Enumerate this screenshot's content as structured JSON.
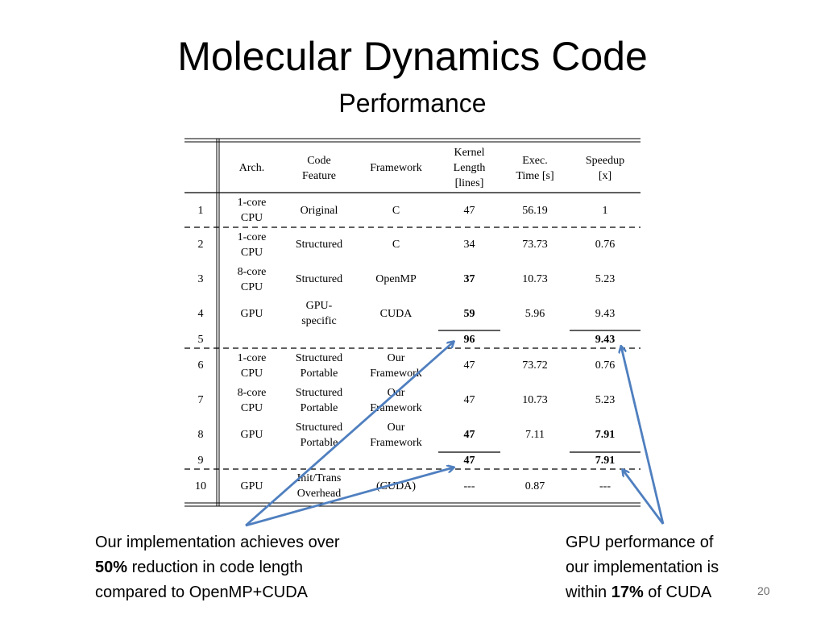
{
  "slide": {
    "title": "Molecular Dynamics Code",
    "subtitle": "Performance",
    "page_number": "20"
  },
  "table": {
    "headers": [
      "",
      "Arch.",
      "Code\nFeature",
      "Framework",
      "Kernel\nLength\n[lines]",
      "Exec.\nTime [s]",
      "Speedup\n[x]"
    ],
    "rows": [
      [
        "1",
        "1-core\nCPU",
        "Original",
        "C",
        "47",
        "56.19",
        "1"
      ],
      [
        "2",
        "1-core\nCPU",
        "Structured",
        "C",
        "34",
        "73.73",
        "0.76"
      ],
      [
        "3",
        "8-core\nCPU",
        "Structured",
        "OpenMP",
        "37",
        "10.73",
        "5.23"
      ],
      [
        "4",
        "GPU",
        "GPU-\nspecific",
        "CUDA",
        "59",
        "5.96",
        "9.43"
      ],
      [
        "5",
        "",
        "",
        "",
        "96",
        "",
        "9.43"
      ],
      [
        "6",
        "1-core\nCPU",
        "Structured\nPortable",
        "Our\nFramework",
        "47",
        "73.72",
        "0.76"
      ],
      [
        "7",
        "8-core\nCPU",
        "Structured\nPortable",
        "Our\nFramework",
        "47",
        "10.73",
        "5.23"
      ],
      [
        "8",
        "GPU",
        "Structured\nPortable",
        "Our\nFramework",
        "47",
        "7.11",
        "7.91"
      ],
      [
        "9",
        "",
        "",
        "",
        "47",
        "",
        "7.91"
      ],
      [
        "10",
        "GPU",
        "Init/Trans\nOverhead",
        "(CUDA)",
        "---",
        "0.87",
        "---"
      ]
    ],
    "bold_cells": [
      "2-4",
      "3-4",
      "4-4",
      "4-6",
      "7-4",
      "7-6",
      "8-4",
      "8-6"
    ]
  },
  "notes": {
    "left": {
      "line1": "Our implementation achieves over",
      "bold": "50%",
      "line2_rest": " reduction in code length",
      "line3": "compared to OpenMP+CUDA"
    },
    "right": {
      "line1": "GPU performance of",
      "line2": "our implementation is",
      "line3_pre": "within ",
      "bold": "17%",
      "line3_post": " of CUDA"
    }
  },
  "colors": {
    "arrow": "#4f7fbf"
  }
}
